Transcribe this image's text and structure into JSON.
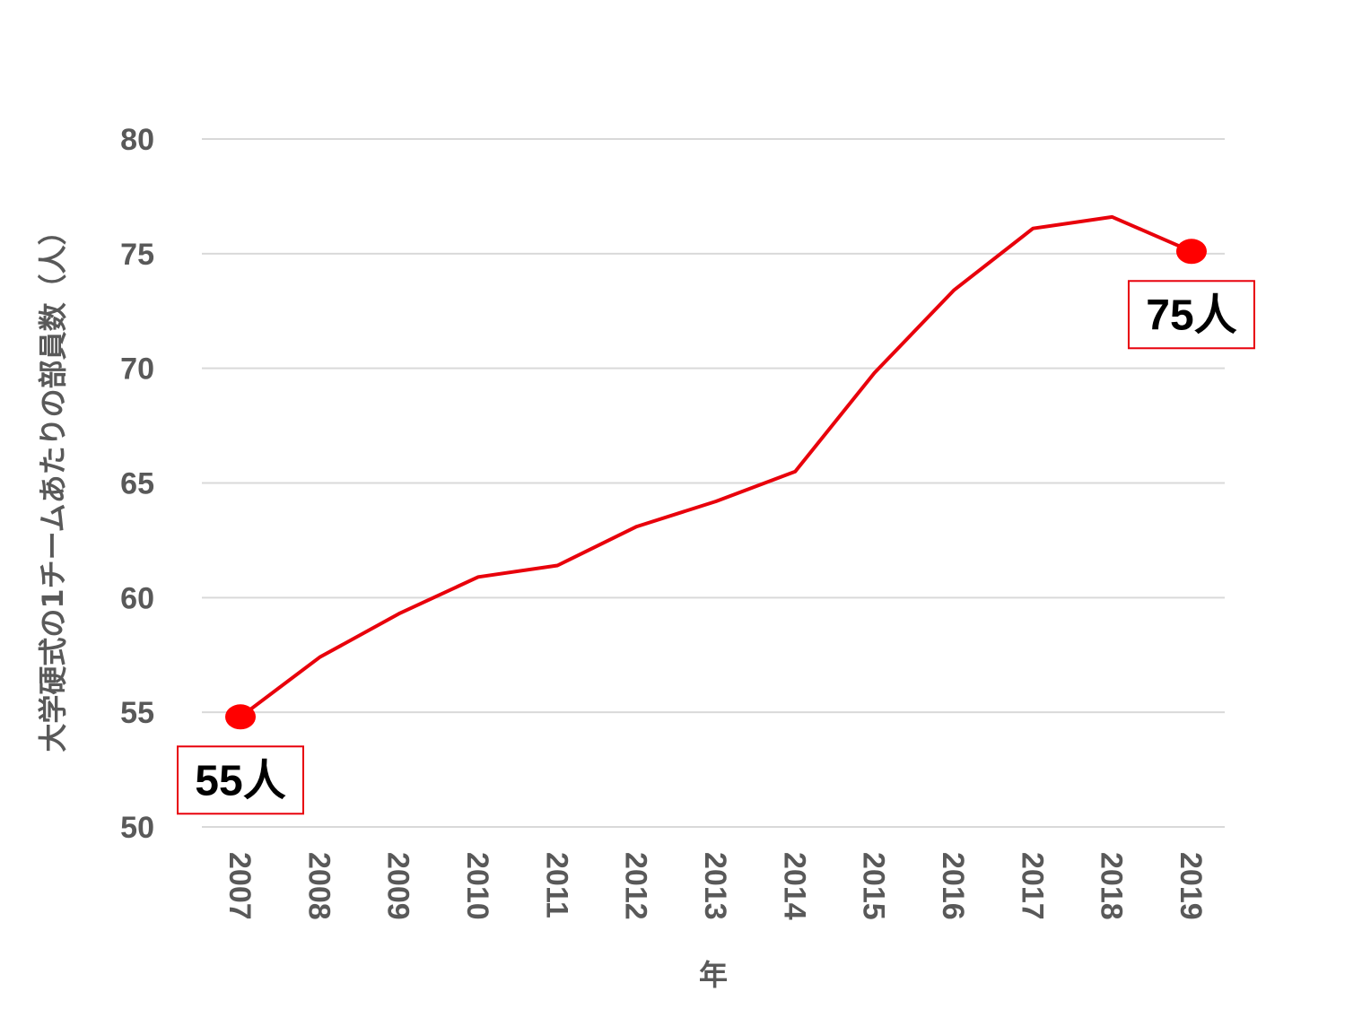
{
  "chart_data": {
    "type": "line",
    "x": [
      "2007",
      "2008",
      "2009",
      "2010",
      "2011",
      "2012",
      "2013",
      "2014",
      "2015",
      "2016",
      "2017",
      "2018",
      "2019"
    ],
    "series": [
      {
        "values": [
          54.8,
          57.4,
          59.3,
          60.9,
          61.4,
          63.1,
          64.2,
          65.5,
          69.8,
          73.4,
          76.1,
          76.6,
          75.1
        ]
      }
    ],
    "ylabel": "大学硬式の1チームあたりの部員数（人）",
    "xlabel": "年",
    "ylim": [
      50,
      80
    ],
    "yticks": [
      "50",
      "55",
      "60",
      "65",
      "70",
      "75",
      "80"
    ],
    "grid": true,
    "line_color": "#e8000b",
    "callouts": [
      {
        "index": 0,
        "label": "55人",
        "placement": "below"
      },
      {
        "index": 12,
        "label": "75人",
        "placement": "below"
      }
    ]
  }
}
